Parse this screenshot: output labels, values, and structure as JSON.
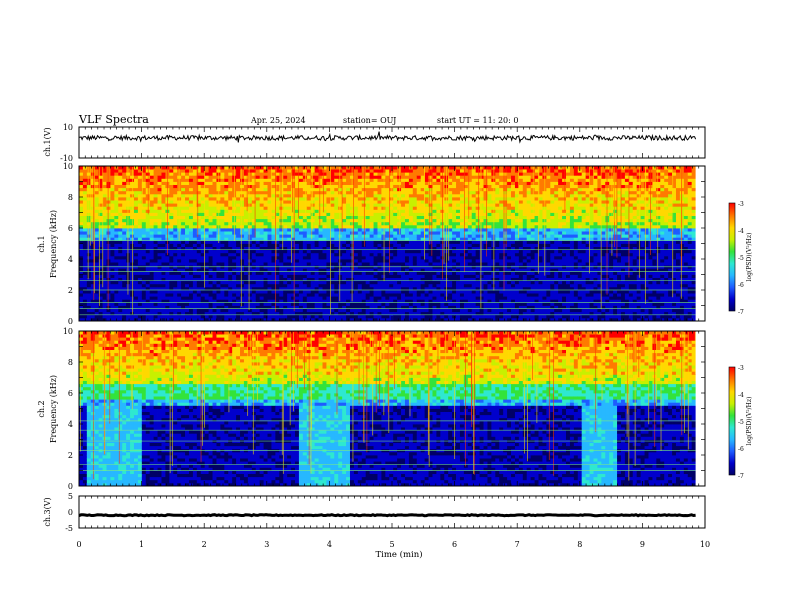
{
  "header": {
    "title": "VLF Spectra",
    "date": "Apr. 25, 2024",
    "station": "station= OUJ",
    "start": "start UT = 11: 20: 0"
  },
  "colors": {
    "colormap": [
      "#000066",
      "#0000cc",
      "#1e5cff",
      "#27b8ff",
      "#2ee8d0",
      "#33e33b",
      "#c8f000",
      "#ffd800",
      "#ff7a00",
      "#ff0000"
    ],
    "trace": "#000000"
  },
  "chart_data": [
    {
      "type": "line",
      "panel": "ch1-waveform",
      "ylabel": "ch.1(V)",
      "ylim": [
        -10,
        10
      ],
      "yticks": [
        "10",
        "-10"
      ],
      "series": [
        {
          "values_description_level": 3,
          "noise_amplitude": 1.5
        }
      ],
      "xlim": [
        0,
        10
      ]
    },
    {
      "type": "heatmap",
      "panel": "ch1-spectrogram",
      "ylabel": "ch.1",
      "ylabel2": "Frequency (kHz)",
      "ylim": [
        0,
        10
      ],
      "yticks": [
        "0",
        "2",
        "4",
        "6",
        "8",
        "10"
      ],
      "xlim": [
        0,
        10
      ],
      "colorbar": {
        "label": "log(PSD)(V²/Hz)",
        "range": [
          -7,
          -3
        ],
        "ticks": [
          "-3",
          "-4",
          "-5",
          "-6",
          "-7"
        ]
      },
      "features": {
        "high_band_kHz": [
          6,
          10
        ],
        "low_band_kHz": [
          0,
          5.5
        ],
        "line_frequencies_kHz": [
          0.4,
          0.8,
          1.2,
          2.0,
          2.6,
          3.2,
          3.5,
          4.6,
          5.2
        ]
      }
    },
    {
      "type": "heatmap",
      "panel": "ch2-spectrogram",
      "ylabel": "ch.2",
      "ylabel2": "Frequency (kHz)",
      "ylim": [
        0,
        10
      ],
      "yticks": [
        "0",
        "2",
        "4",
        "6",
        "8",
        "10"
      ],
      "xlim": [
        0,
        10
      ],
      "colorbar": {
        "label": "log(PSD)(V²/Hz)",
        "range": [
          -7,
          -3
        ],
        "ticks": [
          "-3",
          "-4",
          "-5",
          "-6",
          "-7"
        ]
      },
      "features": {
        "bright_intervals_min": [
          [
            0.1,
            0.95
          ],
          [
            3.5,
            4.3
          ],
          [
            8.0,
            8.55
          ]
        ],
        "line_frequencies_kHz": [
          1.0,
          1.4,
          2.3,
          2.9,
          3.6,
          4.2
        ]
      }
    },
    {
      "type": "line",
      "panel": "ch3-waveform",
      "ylabel": "ch.3(V)",
      "ylim": [
        -5,
        5
      ],
      "yticks": [
        "5",
        "0",
        "-5"
      ],
      "series": [
        {
          "level": -1,
          "noise_amplitude": 0.15
        }
      ],
      "xlim": [
        0,
        10
      ],
      "xlabel": "Time (min)",
      "xticks": [
        "0",
        "1",
        "2",
        "3",
        "4",
        "5",
        "6",
        "7",
        "8",
        "9",
        "10"
      ]
    }
  ]
}
